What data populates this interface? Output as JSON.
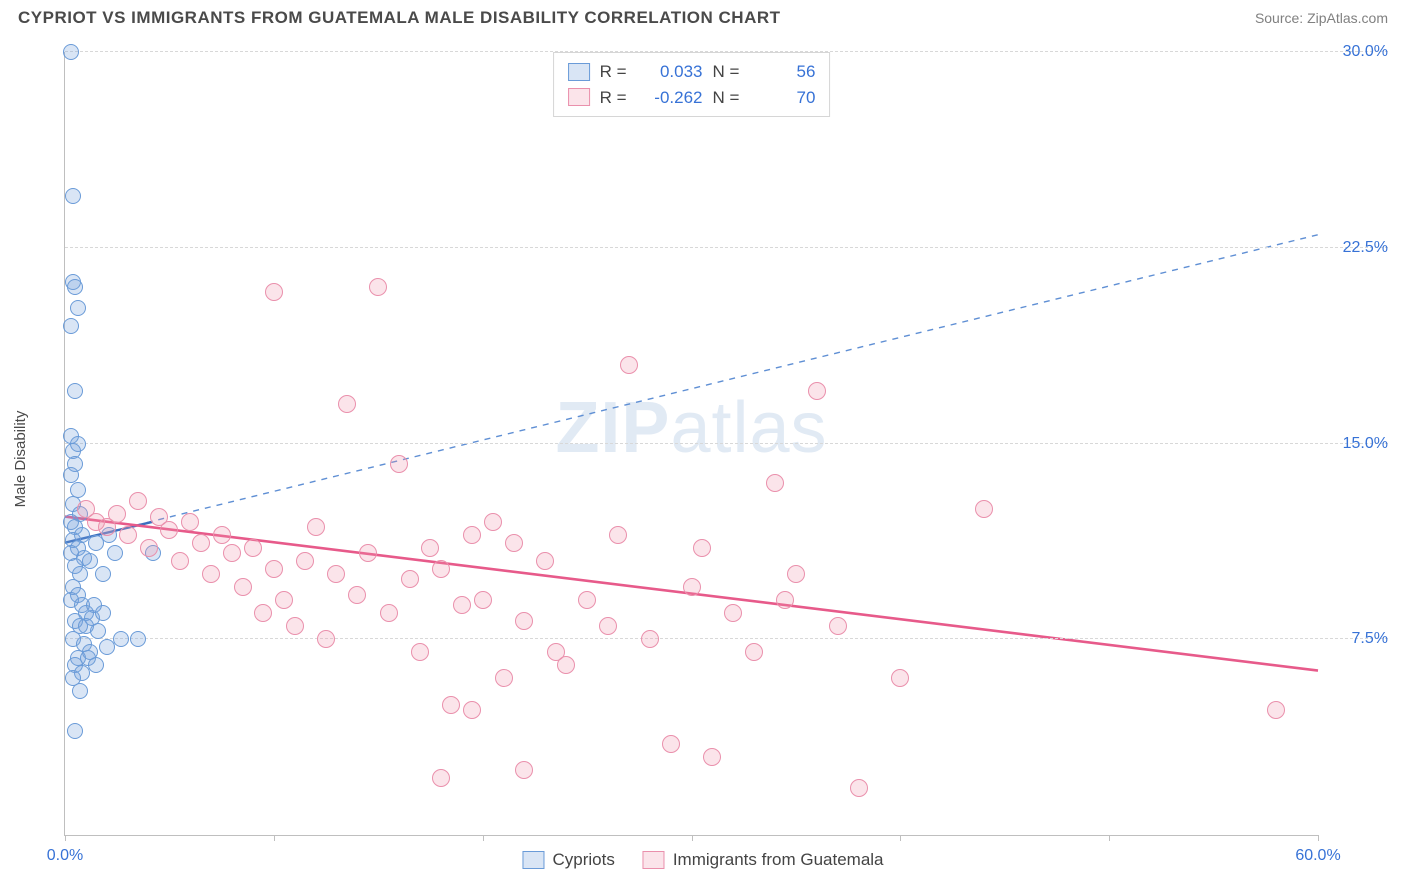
{
  "title": "CYPRIOT VS IMMIGRANTS FROM GUATEMALA MALE DISABILITY CORRELATION CHART",
  "source": "Source: ZipAtlas.com",
  "y_axis_label": "Male Disability",
  "watermark": {
    "head": "ZIP",
    "tail": "atlas"
  },
  "axis": {
    "xmin": 0,
    "xmax": 60,
    "ymin": 0,
    "ymax": 30,
    "x_ticks": [
      0,
      10,
      20,
      30,
      40,
      50,
      60
    ],
    "x_tick_labels": {
      "0": "0.0%",
      "60": "60.0%"
    },
    "y_grid": [
      7.5,
      15.0,
      22.5,
      30.0
    ],
    "y_labels": [
      "7.5%",
      "15.0%",
      "22.5%",
      "30.0%"
    ],
    "axis_label_color": "#3772d6"
  },
  "series": {
    "cypriots": {
      "label": "Cypriots",
      "fill": "rgba(119,163,219,0.28)",
      "stroke": "#6a9bd8",
      "marker_radius": 8,
      "r_value": "0.033",
      "n_value": "56",
      "trend": {
        "x1": 0,
        "y1": 11.2,
        "x2": 60,
        "y2": 23.0,
        "dash": "6,6",
        "width": 1.4,
        "color": "#5f8fd4"
      },
      "solid_segment": {
        "x1": 0,
        "y1": 11.2,
        "x2": 4.2,
        "y2": 12.0,
        "width": 2.4,
        "color": "#3b6fbf"
      },
      "points": [
        [
          0.3,
          30.0
        ],
        [
          0.4,
          24.5
        ],
        [
          0.4,
          21.2
        ],
        [
          0.5,
          21.0
        ],
        [
          0.6,
          20.2
        ],
        [
          0.3,
          19.5
        ],
        [
          0.5,
          17.0
        ],
        [
          0.3,
          15.3
        ],
        [
          0.6,
          15.0
        ],
        [
          0.4,
          14.7
        ],
        [
          0.5,
          14.2
        ],
        [
          0.3,
          13.8
        ],
        [
          0.6,
          13.2
        ],
        [
          0.4,
          12.7
        ],
        [
          0.7,
          12.3
        ],
        [
          0.3,
          12.0
        ],
        [
          0.5,
          11.8
        ],
        [
          0.8,
          11.5
        ],
        [
          0.4,
          11.3
        ],
        [
          0.6,
          11.0
        ],
        [
          0.3,
          10.8
        ],
        [
          0.9,
          10.6
        ],
        [
          0.5,
          10.3
        ],
        [
          0.7,
          10.0
        ],
        [
          1.2,
          10.5
        ],
        [
          1.5,
          11.2
        ],
        [
          1.8,
          10.0
        ],
        [
          2.1,
          11.5
        ],
        [
          2.4,
          10.8
        ],
        [
          0.4,
          9.5
        ],
        [
          0.6,
          9.2
        ],
        [
          0.3,
          9.0
        ],
        [
          0.8,
          8.8
        ],
        [
          1.0,
          8.5
        ],
        [
          0.5,
          8.2
        ],
        [
          0.7,
          8.0
        ],
        [
          1.3,
          8.3
        ],
        [
          1.6,
          7.8
        ],
        [
          0.4,
          7.5
        ],
        [
          0.9,
          7.3
        ],
        [
          1.2,
          7.0
        ],
        [
          0.6,
          6.8
        ],
        [
          2.0,
          7.2
        ],
        [
          2.7,
          7.5
        ],
        [
          0.5,
          6.5
        ],
        [
          0.8,
          6.2
        ],
        [
          1.1,
          6.8
        ],
        [
          1.5,
          6.5
        ],
        [
          0.4,
          6.0
        ],
        [
          0.7,
          5.5
        ],
        [
          1.0,
          8.0
        ],
        [
          1.4,
          8.8
        ],
        [
          1.8,
          8.5
        ],
        [
          0.5,
          4.0
        ],
        [
          3.5,
          7.5
        ],
        [
          4.2,
          10.8
        ]
      ]
    },
    "guatemala": {
      "label": "Immigrants from Guatemala",
      "fill": "rgba(239,149,175,0.26)",
      "stroke": "#ea90ac",
      "marker_radius": 9,
      "r_value": "-0.262",
      "n_value": "70",
      "trend": {
        "x1": 0,
        "y1": 12.2,
        "x2": 60,
        "y2": 6.3,
        "dash": "",
        "width": 2.6,
        "color": "#e75a8a"
      },
      "points": [
        [
          1.0,
          12.5
        ],
        [
          1.5,
          12.0
        ],
        [
          2.0,
          11.8
        ],
        [
          2.5,
          12.3
        ],
        [
          3.0,
          11.5
        ],
        [
          3.5,
          12.8
        ],
        [
          4.0,
          11.0
        ],
        [
          4.5,
          12.2
        ],
        [
          5.0,
          11.7
        ],
        [
          5.5,
          10.5
        ],
        [
          6.0,
          12.0
        ],
        [
          6.5,
          11.2
        ],
        [
          7.0,
          10.0
        ],
        [
          7.5,
          11.5
        ],
        [
          8.0,
          10.8
        ],
        [
          8.5,
          9.5
        ],
        [
          9.0,
          11.0
        ],
        [
          9.5,
          8.5
        ],
        [
          10.0,
          10.2
        ],
        [
          10.5,
          9.0
        ],
        [
          10.0,
          20.8
        ],
        [
          11.0,
          8.0
        ],
        [
          11.5,
          10.5
        ],
        [
          12.0,
          11.8
        ],
        [
          12.5,
          7.5
        ],
        [
          13.0,
          10.0
        ],
        [
          13.5,
          16.5
        ],
        [
          14.0,
          9.2
        ],
        [
          14.5,
          10.8
        ],
        [
          15.0,
          21.0
        ],
        [
          15.5,
          8.5
        ],
        [
          16.0,
          14.2
        ],
        [
          16.5,
          9.8
        ],
        [
          17.0,
          7.0
        ],
        [
          17.5,
          11.0
        ],
        [
          18.0,
          10.2
        ],
        [
          18.5,
          5.0
        ],
        [
          18.0,
          2.2
        ],
        [
          19.0,
          8.8
        ],
        [
          19.5,
          11.5
        ],
        [
          20.0,
          9.0
        ],
        [
          20.5,
          12.0
        ],
        [
          21.0,
          6.0
        ],
        [
          21.5,
          11.2
        ],
        [
          22.0,
          8.2
        ],
        [
          19.5,
          4.8
        ],
        [
          23.0,
          10.5
        ],
        [
          24.0,
          6.5
        ],
        [
          25.0,
          9.0
        ],
        [
          22.0,
          2.5
        ],
        [
          26.0,
          8.0
        ],
        [
          27.0,
          18.0
        ],
        [
          28.0,
          7.5
        ],
        [
          29.0,
          3.5
        ],
        [
          30.0,
          9.5
        ],
        [
          31.0,
          3.0
        ],
        [
          32.0,
          8.5
        ],
        [
          34.0,
          13.5
        ],
        [
          36.0,
          17.0
        ],
        [
          34.5,
          9.0
        ],
        [
          38.0,
          1.8
        ],
        [
          30.5,
          11.0
        ],
        [
          33.0,
          7.0
        ],
        [
          35.0,
          10.0
        ],
        [
          37.0,
          8.0
        ],
        [
          40.0,
          6.0
        ],
        [
          44.0,
          12.5
        ],
        [
          58.0,
          4.8
        ],
        [
          26.5,
          11.5
        ],
        [
          23.5,
          7.0
        ]
      ]
    }
  },
  "stats_box": {
    "r_label": "R  =",
    "n_label": "N  ="
  }
}
